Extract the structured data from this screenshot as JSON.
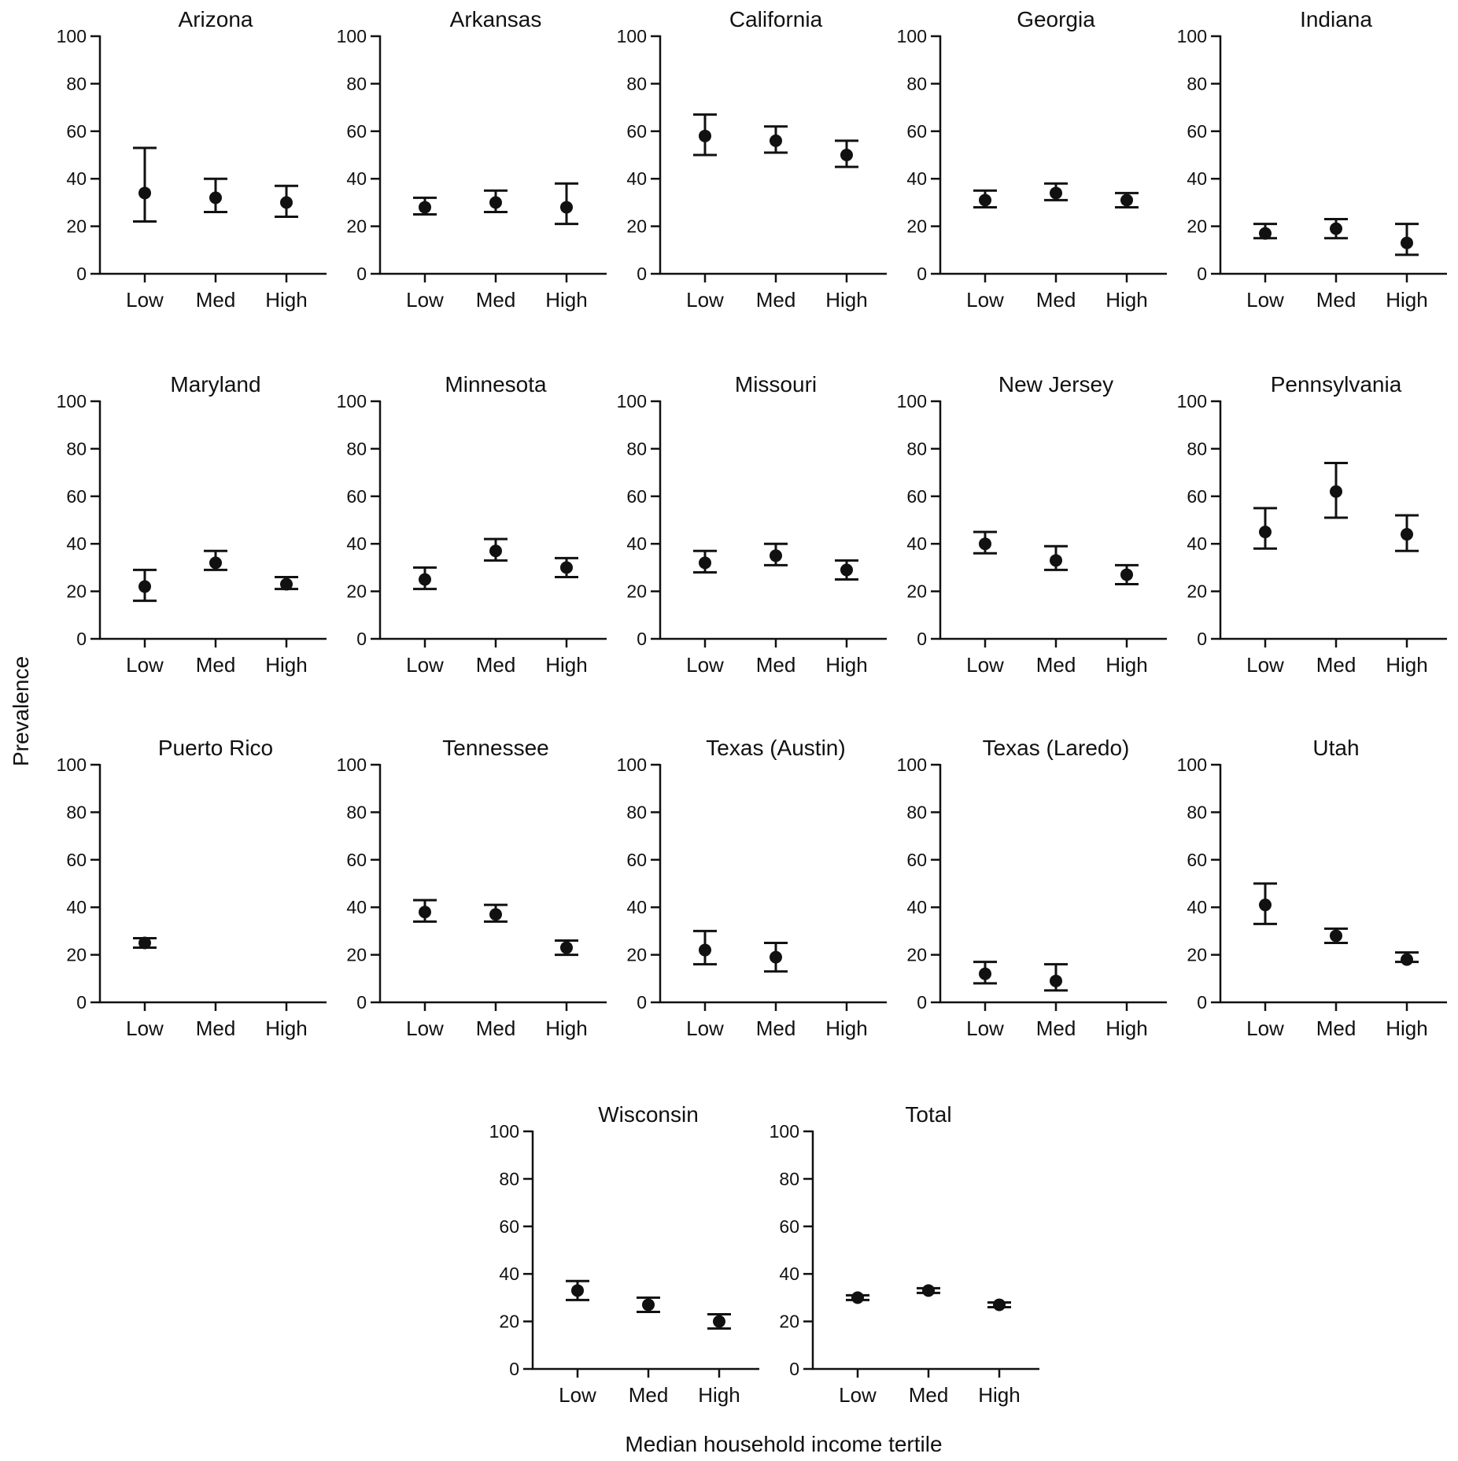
{
  "chart_data": {
    "type": "scatter",
    "xlabel": "Median household income tertile",
    "ylabel": "Prevalence",
    "categories": [
      "Low",
      "Med",
      "High"
    ],
    "ylim": [
      0,
      100
    ],
    "yticks": [
      0,
      20,
      40,
      60,
      80,
      100
    ],
    "grid": false,
    "error_bars": true,
    "color": "#111111",
    "panels": [
      {
        "title": "Arizona",
        "points": [
          {
            "x": "Low",
            "y": 34,
            "lower": 22,
            "upper": 53
          },
          {
            "x": "Med",
            "y": 32,
            "lower": 26,
            "upper": 40
          },
          {
            "x": "High",
            "y": 30,
            "lower": 24,
            "upper": 37
          }
        ]
      },
      {
        "title": "Arkansas",
        "points": [
          {
            "x": "Low",
            "y": 28,
            "lower": 25,
            "upper": 32
          },
          {
            "x": "Med",
            "y": 30,
            "lower": 26,
            "upper": 35
          },
          {
            "x": "High",
            "y": 28,
            "lower": 21,
            "upper": 38
          }
        ]
      },
      {
        "title": "California",
        "points": [
          {
            "x": "Low",
            "y": 58,
            "lower": 50,
            "upper": 67
          },
          {
            "x": "Med",
            "y": 56,
            "lower": 51,
            "upper": 62
          },
          {
            "x": "High",
            "y": 50,
            "lower": 45,
            "upper": 56
          }
        ]
      },
      {
        "title": "Georgia",
        "points": [
          {
            "x": "Low",
            "y": 31,
            "lower": 28,
            "upper": 35
          },
          {
            "x": "Med",
            "y": 34,
            "lower": 31,
            "upper": 38
          },
          {
            "x": "High",
            "y": 31,
            "lower": 28,
            "upper": 34
          }
        ]
      },
      {
        "title": "Indiana",
        "points": [
          {
            "x": "Low",
            "y": 17,
            "lower": 15,
            "upper": 21
          },
          {
            "x": "Med",
            "y": 19,
            "lower": 15,
            "upper": 23
          },
          {
            "x": "High",
            "y": 13,
            "lower": 8,
            "upper": 21
          }
        ]
      },
      {
        "title": "Maryland",
        "points": [
          {
            "x": "Low",
            "y": 22,
            "lower": 16,
            "upper": 29
          },
          {
            "x": "Med",
            "y": 32,
            "lower": 29,
            "upper": 37
          },
          {
            "x": "High",
            "y": 23,
            "lower": 21,
            "upper": 26
          }
        ]
      },
      {
        "title": "Minnesota",
        "points": [
          {
            "x": "Low",
            "y": 25,
            "lower": 21,
            "upper": 30
          },
          {
            "x": "Med",
            "y": 37,
            "lower": 33,
            "upper": 42
          },
          {
            "x": "High",
            "y": 30,
            "lower": 26,
            "upper": 34
          }
        ]
      },
      {
        "title": "Missouri",
        "points": [
          {
            "x": "Low",
            "y": 32,
            "lower": 28,
            "upper": 37
          },
          {
            "x": "Med",
            "y": 35,
            "lower": 31,
            "upper": 40
          },
          {
            "x": "High",
            "y": 29,
            "lower": 25,
            "upper": 33
          }
        ]
      },
      {
        "title": "New Jersey",
        "points": [
          {
            "x": "Low",
            "y": 40,
            "lower": 36,
            "upper": 45
          },
          {
            "x": "Med",
            "y": 33,
            "lower": 29,
            "upper": 39
          },
          {
            "x": "High",
            "y": 27,
            "lower": 23,
            "upper": 31
          }
        ]
      },
      {
        "title": "Pennsylvania",
        "points": [
          {
            "x": "Low",
            "y": 45,
            "lower": 38,
            "upper": 55
          },
          {
            "x": "Med",
            "y": 62,
            "lower": 51,
            "upper": 74
          },
          {
            "x": "High",
            "y": 44,
            "lower": 37,
            "upper": 52
          }
        ]
      },
      {
        "title": "Puerto Rico",
        "points": [
          {
            "x": "Low",
            "y": 25,
            "lower": 23,
            "upper": 27
          }
        ]
      },
      {
        "title": "Tennessee",
        "points": [
          {
            "x": "Low",
            "y": 38,
            "lower": 34,
            "upper": 43
          },
          {
            "x": "Med",
            "y": 37,
            "lower": 34,
            "upper": 41
          },
          {
            "x": "High",
            "y": 23,
            "lower": 20,
            "upper": 26
          }
        ]
      },
      {
        "title": "Texas (Austin)",
        "points": [
          {
            "x": "Low",
            "y": 22,
            "lower": 16,
            "upper": 30
          },
          {
            "x": "Med",
            "y": 19,
            "lower": 13,
            "upper": 25
          }
        ]
      },
      {
        "title": "Texas (Laredo)",
        "points": [
          {
            "x": "Low",
            "y": 12,
            "lower": 8,
            "upper": 17
          },
          {
            "x": "Med",
            "y": 9,
            "lower": 5,
            "upper": 16
          }
        ]
      },
      {
        "title": "Utah",
        "points": [
          {
            "x": "Low",
            "y": 41,
            "lower": 33,
            "upper": 50
          },
          {
            "x": "Med",
            "y": 28,
            "lower": 25,
            "upper": 31
          },
          {
            "x": "High",
            "y": 18,
            "lower": 17,
            "upper": 21
          }
        ]
      },
      {
        "title": "Wisconsin",
        "points": [
          {
            "x": "Low",
            "y": 33,
            "lower": 29,
            "upper": 37
          },
          {
            "x": "Med",
            "y": 27,
            "lower": 24,
            "upper": 30
          },
          {
            "x": "High",
            "y": 20,
            "lower": 17,
            "upper": 23
          }
        ]
      },
      {
        "title": "Total",
        "points": [
          {
            "x": "Low",
            "y": 30,
            "lower": 29,
            "upper": 31
          },
          {
            "x": "Med",
            "y": 33,
            "lower": 32,
            "upper": 34
          },
          {
            "x": "High",
            "y": 27,
            "lower": 26,
            "upper": 28
          }
        ]
      }
    ]
  }
}
